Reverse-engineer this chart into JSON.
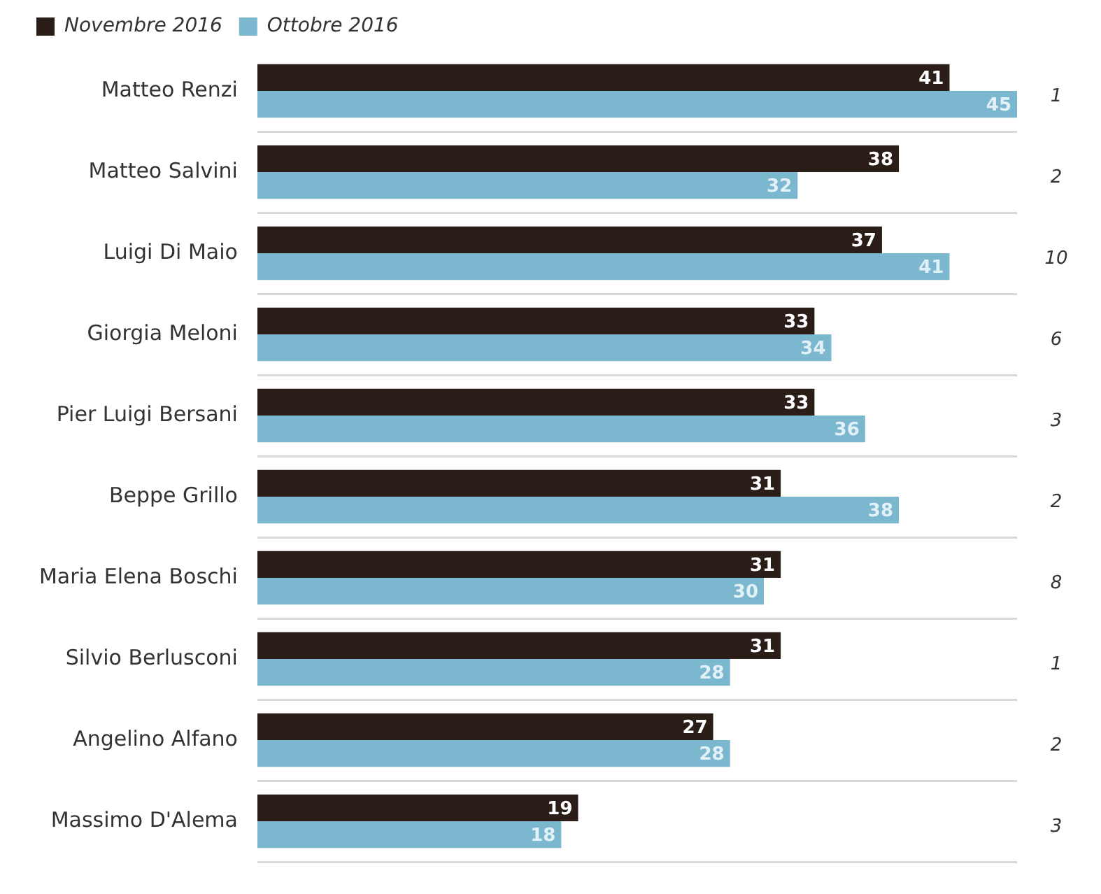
{
  "chart_data": {
    "type": "bar",
    "orientation": "horizontal",
    "categories": [
      "Matteo Renzi",
      "Matteo Salvini",
      "Luigi Di Maio",
      "Giorgia Meloni",
      "Pier Luigi Bersani",
      "Beppe Grillo",
      "Maria Elena Boschi",
      "Silvio Berlusconi",
      "Angelino Alfano",
      "Massimo D'Alema"
    ],
    "series": [
      {
        "name": "Novembre 2016",
        "color": "#2b1e18",
        "values": [
          41,
          38,
          37,
          33,
          33,
          31,
          31,
          31,
          27,
          19
        ]
      },
      {
        "name": "Ottobre 2016",
        "color": "#7bb7cf",
        "values": [
          45,
          32,
          41,
          34,
          36,
          38,
          30,
          28,
          28,
          18
        ]
      }
    ],
    "xlim": [
      0,
      45
    ],
    "tick_labels": "y",
    "data_labels": true,
    "grid": "y",
    "legend": "top left",
    "annotations": [
      "1",
      "2",
      "10",
      "6",
      "3",
      "2",
      "8",
      "1",
      "2",
      "3"
    ]
  }
}
